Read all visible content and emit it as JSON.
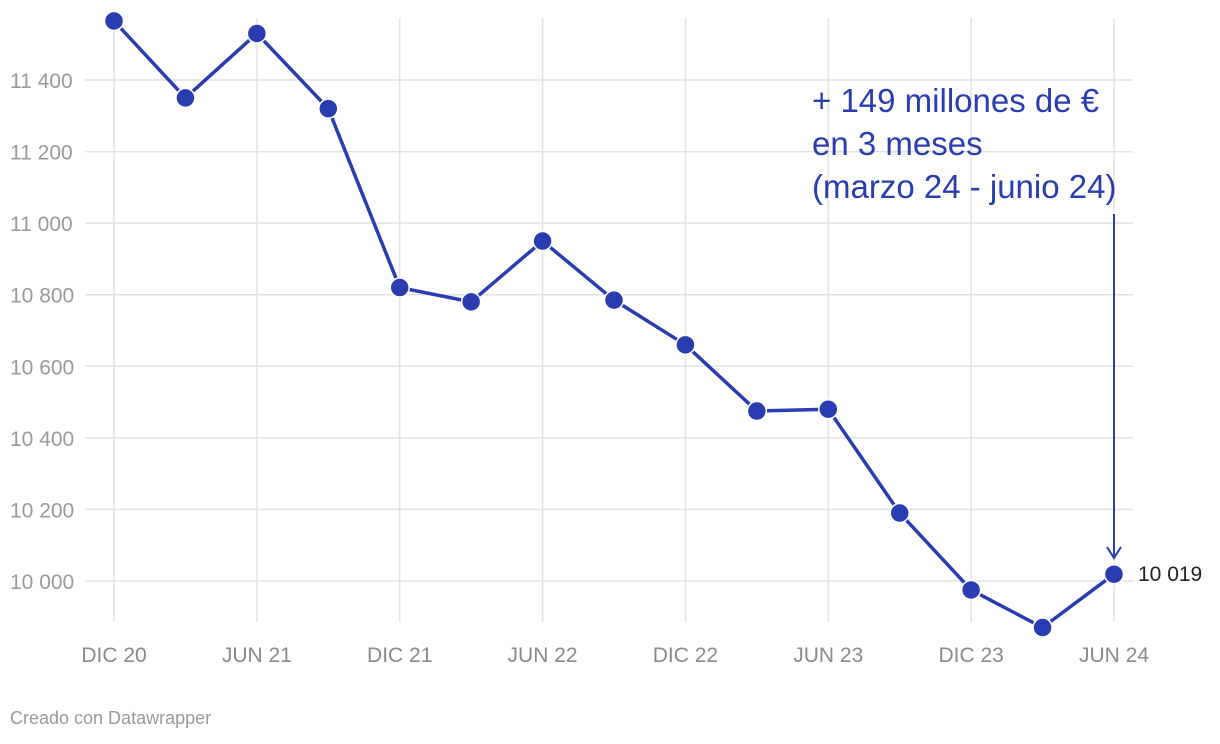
{
  "chart_data": {
    "type": "line",
    "x": [
      "DIC 20",
      "MAR 21",
      "JUN 21",
      "SEP 21",
      "DIC 21",
      "MAR 22",
      "JUN 22",
      "SEP 22",
      "DIC 22",
      "MAR 23",
      "JUN 23",
      "SEP 23",
      "DIC 23",
      "MAR 24",
      "JUN 24"
    ],
    "x_tick_labels": [
      "DIC 20",
      "JUN 21",
      "DIC 21",
      "JUN 22",
      "DIC 22",
      "JUN 23",
      "DIC 23",
      "JUN 24"
    ],
    "series": [
      {
        "values": [
          11565,
          11350,
          11530,
          11320,
          10820,
          10780,
          10950,
          10785,
          10660,
          10475,
          10480,
          10190,
          9975,
          9870,
          10019
        ]
      }
    ],
    "y_ticks": [
      10000,
      10200,
      10400,
      10600,
      10800,
      11000,
      11200,
      11400
    ],
    "y_tick_labels": [
      "10 000",
      "10 200",
      "10 400",
      "10 600",
      "10 800",
      "11 000",
      "11 200",
      "11 400"
    ],
    "ylim": [
      9870,
      11565
    ],
    "grid": true,
    "line_color": "#2a3db0",
    "value_label": "10 019",
    "annotation": {
      "lines": [
        "+ 149 millones de €",
        "en 3 meses",
        "(marzo 24 - junio 24)"
      ],
      "color": "#2a3db0"
    }
  },
  "credit": "Creado con Datawrapper"
}
